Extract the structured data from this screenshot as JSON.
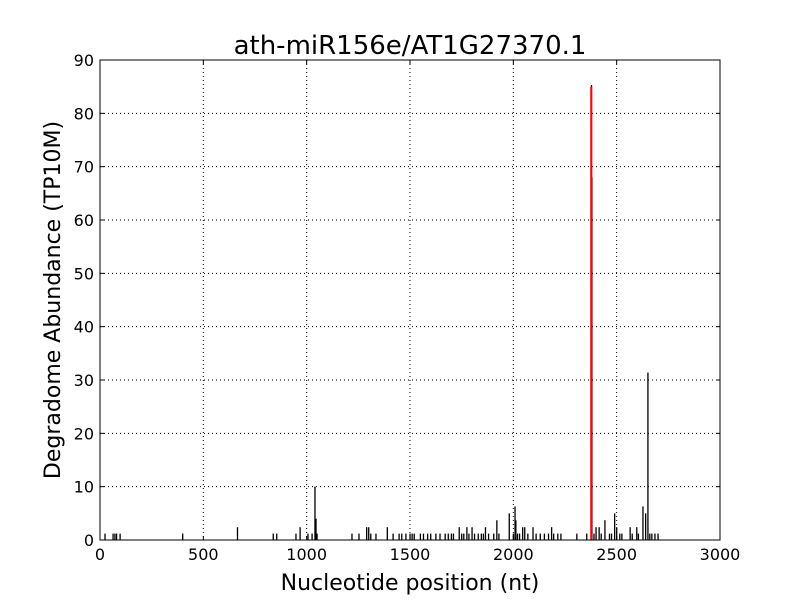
{
  "chart_data": {
    "type": "bar",
    "title": "ath-miR156e/AT1G27370.1",
    "xlabel": "Nucleotide position (nt)",
    "ylabel": "Degradome Abundance (TP10M)",
    "xlim": [
      0,
      3000
    ],
    "ylim": [
      0,
      90
    ],
    "xticks": [
      0,
      500,
      1000,
      1500,
      2000,
      2500,
      3000
    ],
    "yticks": [
      0,
      10,
      20,
      30,
      40,
      50,
      60,
      70,
      80,
      90
    ],
    "grid": true,
    "bar_color": "#000000",
    "highlight_color": "#ff0000",
    "bars": [
      [
        24,
        1.2
      ],
      [
        63,
        1.2
      ],
      [
        72,
        1.2
      ],
      [
        80,
        1.2
      ],
      [
        97,
        1.2
      ],
      [
        400,
        1.2
      ],
      [
        665,
        2.4
      ],
      [
        838,
        1.2
      ],
      [
        855,
        1.2
      ],
      [
        948,
        1.2
      ],
      [
        968,
        2.4
      ],
      [
        1006,
        1.2
      ],
      [
        1026,
        1.2
      ],
      [
        1040,
        10
      ],
      [
        1045,
        4
      ],
      [
        1050,
        1.2
      ],
      [
        1219,
        1.2
      ],
      [
        1253,
        1.2
      ],
      [
        1290,
        2.4
      ],
      [
        1300,
        2.4
      ],
      [
        1310,
        1.2
      ],
      [
        1335,
        1.2
      ],
      [
        1390,
        2.4
      ],
      [
        1418,
        1.2
      ],
      [
        1447,
        1.2
      ],
      [
        1460,
        1.2
      ],
      [
        1480,
        1.2
      ],
      [
        1500,
        1.2
      ],
      [
        1510,
        1.2
      ],
      [
        1520,
        1.2
      ],
      [
        1550,
        1.2
      ],
      [
        1565,
        1.2
      ],
      [
        1585,
        1.2
      ],
      [
        1600,
        1.2
      ],
      [
        1625,
        1.2
      ],
      [
        1645,
        1.2
      ],
      [
        1670,
        1.2
      ],
      [
        1685,
        1.2
      ],
      [
        1700,
        1.2
      ],
      [
        1710,
        1.2
      ],
      [
        1738,
        2.4
      ],
      [
        1750,
        1.2
      ],
      [
        1760,
        1.2
      ],
      [
        1775,
        2.4
      ],
      [
        1785,
        1.2
      ],
      [
        1800,
        2.4
      ],
      [
        1812,
        1.2
      ],
      [
        1830,
        1.2
      ],
      [
        1845,
        1.2
      ],
      [
        1855,
        1.2
      ],
      [
        1865,
        2.4
      ],
      [
        1880,
        1.2
      ],
      [
        1905,
        1.2
      ],
      [
        1920,
        3.7
      ],
      [
        1930,
        1.2
      ],
      [
        1980,
        5
      ],
      [
        2000,
        1.2
      ],
      [
        2008,
        6.3
      ],
      [
        2012,
        3.7
      ],
      [
        2020,
        1.2
      ],
      [
        2030,
        1.2
      ],
      [
        2045,
        2.4
      ],
      [
        2055,
        2.4
      ],
      [
        2070,
        1.2
      ],
      [
        2095,
        2.4
      ],
      [
        2110,
        1.2
      ],
      [
        2130,
        1.2
      ],
      [
        2150,
        1.2
      ],
      [
        2170,
        1.2
      ],
      [
        2185,
        2.4
      ],
      [
        2195,
        1.2
      ],
      [
        2215,
        1.2
      ],
      [
        2230,
        1.2
      ],
      [
        2307,
        1.2
      ],
      [
        2355,
        1.2
      ],
      [
        2378,
        85.3
      ],
      [
        2380,
        68
      ],
      [
        2390,
        1.2
      ],
      [
        2400,
        2.4
      ],
      [
        2415,
        2.4
      ],
      [
        2425,
        1.2
      ],
      [
        2443,
        3.7
      ],
      [
        2465,
        1.2
      ],
      [
        2475,
        1.2
      ],
      [
        2490,
        5
      ],
      [
        2500,
        2.4
      ],
      [
        2515,
        1.2
      ],
      [
        2525,
        1.2
      ],
      [
        2565,
        2.4
      ],
      [
        2575,
        1.2
      ],
      [
        2597,
        2.4
      ],
      [
        2605,
        1.2
      ],
      [
        2627,
        6.3
      ],
      [
        2640,
        5
      ],
      [
        2651,
        31.4
      ],
      [
        2660,
        1.2
      ],
      [
        2670,
        1.2
      ],
      [
        2685,
        1.2
      ],
      [
        2700,
        1.2
      ]
    ],
    "highlight": [
      [
        2377,
        85
      ]
    ]
  }
}
